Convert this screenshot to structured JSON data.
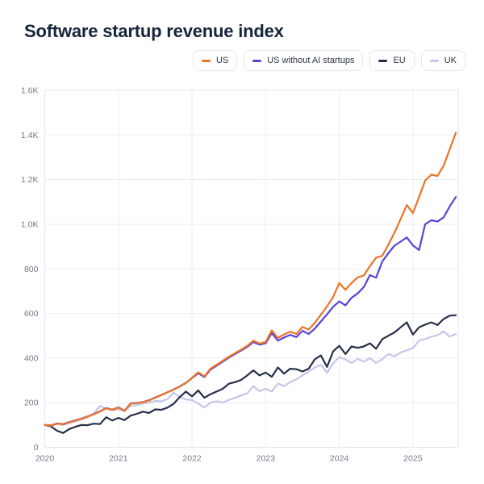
{
  "title": "Software startup revenue index",
  "chart_data": {
    "type": "line",
    "title": "Software startup revenue index",
    "xlabel": "",
    "ylabel": "",
    "grid": true,
    "legend_position": "top-right",
    "x_unit": "month",
    "x_start_year": 2020,
    "x_end_approx": 2025.6,
    "ylim": [
      0,
      1600
    ],
    "y_tick_values": [
      0,
      200,
      400,
      600,
      800,
      1000,
      1200,
      1400,
      1600
    ],
    "y_tick_labels": [
      "0",
      "200",
      "400",
      "600",
      "800",
      "1.0K",
      "1.2K",
      "1.4K",
      "1.6K"
    ],
    "x_tick_values": [
      2020,
      2021,
      2022,
      2023,
      2024,
      2025
    ],
    "x_tick_labels": [
      "2020",
      "2021",
      "2022",
      "2023",
      "2024",
      "2025"
    ],
    "series": [
      {
        "name": "US",
        "color": "#ee7328",
        "values": [
          100,
          97,
          106,
          103,
          112,
          120,
          128,
          138,
          148,
          160,
          175,
          168,
          178,
          163,
          196,
          198,
          202,
          210,
          222,
          234,
          246,
          258,
          272,
          288,
          312,
          336,
          318,
          352,
          370,
          388,
          406,
          422,
          438,
          455,
          478,
          465,
          472,
          524,
          490,
          506,
          518,
          508,
          540,
          528,
          558,
          594,
          632,
          674,
          736,
          706,
          736,
          762,
          770,
          812,
          850,
          858,
          908,
          962,
          1024,
          1086,
          1050,
          1122,
          1196,
          1222,
          1216,
          1262,
          1336,
          1410
        ]
      },
      {
        "name": "US without AI startups",
        "color": "#5743d9",
        "values": [
          100,
          98,
          107,
          104,
          113,
          121,
          129,
          139,
          149,
          161,
          176,
          169,
          179,
          164,
          197,
          199,
          203,
          211,
          223,
          235,
          247,
          259,
          273,
          289,
          310,
          332,
          315,
          348,
          366,
          384,
          402,
          418,
          434,
          450,
          472,
          460,
          466,
          512,
          478,
          492,
          504,
          494,
          522,
          508,
          532,
          564,
          596,
          630,
          654,
          636,
          670,
          690,
          718,
          772,
          760,
          832,
          870,
          904,
          922,
          941,
          905,
          884,
          1000,
          1018,
          1012,
          1030,
          1080,
          1122
        ]
      },
      {
        "name": "EU",
        "color": "#262f49",
        "values": [
          100,
          94,
          74,
          64,
          82,
          92,
          100,
          99,
          106,
          104,
          135,
          120,
          132,
          122,
          142,
          150,
          160,
          154,
          170,
          168,
          178,
          195,
          225,
          250,
          228,
          255,
          222,
          238,
          250,
          262,
          285,
          292,
          302,
          322,
          345,
          322,
          335,
          316,
          358,
          330,
          352,
          350,
          340,
          352,
          394,
          412,
          360,
          430,
          455,
          418,
          452,
          446,
          452,
          466,
          442,
          484,
          500,
          515,
          538,
          560,
          505,
          538,
          550,
          560,
          548,
          575,
          590,
          592
        ]
      },
      {
        "name": "UK",
        "color": "#c5c6ea",
        "values": [
          100,
          99,
          104,
          100,
          108,
          116,
          124,
          134,
          150,
          185,
          172,
          166,
          170,
          162,
          186,
          190,
          196,
          200,
          208,
          206,
          216,
          244,
          226,
          214,
          212,
          196,
          178,
          200,
          206,
          200,
          212,
          222,
          232,
          242,
          274,
          252,
          262,
          250,
          286,
          274,
          292,
          304,
          322,
          340,
          358,
          370,
          334,
          376,
          405,
          394,
          378,
          396,
          384,
          400,
          378,
          395,
          418,
          408,
          425,
          435,
          445,
          478,
          486,
          496,
          502,
          520,
          496,
          508
        ]
      }
    ]
  },
  "style_colors": {
    "grid": "#e9edf4",
    "frame": "#e0e6ef",
    "axis_text": "#707a8a",
    "title_text": "#16243c"
  }
}
